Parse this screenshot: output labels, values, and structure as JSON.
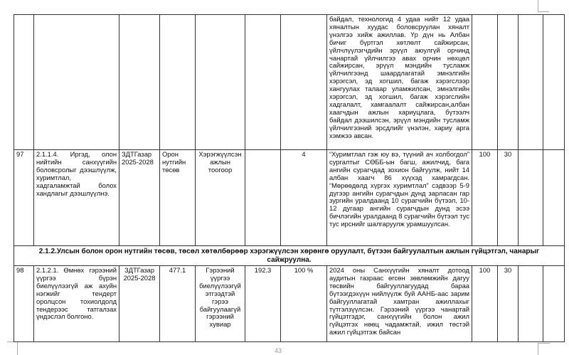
{
  "rows": [
    {
      "no": "",
      "task": "",
      "org": "",
      "budget": "",
      "indicator": "",
      "baseline": "",
      "target": "",
      "report": "байдал, технологид 4 удаа нийт 12 удаа хяналтын хуудас боловсруулан хяналт үнэлгээ хийж ажиллав. Үр дүн нь Албан бичиг бүртгэл хөтлөлт сайжирсан, үйлчлүүлэгчдийн эрүүл аюулгүй орчинд чанартай үйлчилгээ авах орчин нөхцөл сайжирсан, эрүүл мэндийн тусламж үйлчилгээнд шаардлагатай эмнэлгийн хэрэгсэл, эд хогшил, багаж хэрэгслээр хангуулах талаар уламжилсан, эмнэлгийн хэрэгсэл, эд хогшил, багаж хэрэгслийн хадгалалт, хамгаалалт сайжирсан,албан хаагчдын ажлын хариуцлага, бүтээлч байдал дээшилсэн, эрүүл мэндийн тусламж үйлчилгээний эрсдлийг үнэлэн, хариу арга хэмжээ авсан.",
      "score1": "",
      "score2": ""
    },
    {
      "no": "97",
      "task": "2.1.1.4. Иргэд, олон нийтийн санхүүгийн боловсролыг дээшлүүлж, хуримтлал, хадгаламжтай болох хандлагыг дээшлүүлнэ.",
      "org": "ЗДТГазар 2025-2028",
      "budget": "Орон нутгийн төсөв",
      "indicator": "Хэрэгжүүлсэн ажлын тоогоор",
      "baseline": "",
      "target": "4",
      "report": "“Хуримтлал гэж юу вэ, түүний ач холбогдол” сургалтыг СӨББ-ын багш, ажилчид, бага ангийн сурагчдад зохион байгуулж, нийт 14 албан хаагч 86 хүүхэд хамрагдсан. “Мөрөөдөлд хүргэх хуримтлал” сэдвээр 5-9 дүгээр ангийн сурагчдын дунд зарласан гар зургийн уралдаанд 10 сурагчийн бүтээл, 10-12 дугаар ангийн сурагчдын дунд эсээ бичлэгийн уралдаанд 8 сурагчийн бүтээл тус тус ирснийг шалгаруулж урамшуулсан.",
      "score1": "100",
      "score2": "30"
    },
    {
      "no": "98",
      "task": "2.1.2.1. Өмнөх гэрээний үүргээ бүрэн биелүүлээгүй аж ахуйн нэгжийг тендерт оролцсон тохиолдолд тендерээс татгалзах үндэслэл болгоно.",
      "org": "ЗДТГазар 2025-2028",
      "budget": "477.1",
      "indicator": "Гэрээний үүргээ биелүүлээгүй этгээдтэй гэрээ байгуулаагүй гэрээний хувиар",
      "baseline": "192.3",
      "target": "100 %",
      "report": "2024 оны Санхүүгийн хяналт дотоод аудитын газраас өгсөн зөвлөмжийн дагуу төсвийн байгууллагуудад бараа бүтээгдэхүүн нийлүүлж буй ААНБ-аас зарим байгууллагатай хамтран ажиллахыг түтгэлзүүлсэн. Гэрээний үүргээ чанартай гүйцэтгэдэг, санхүүгийн болон ажил гүйцэтгэх нөөц чадамжтай, ижил төстэй ажил гүйцэтгэж байсан",
      "score1": "100",
      "score2": "30"
    }
  ],
  "section_heading": "2.1.2.Улсын болон орон нутгийн төсөв, төсөл хөтөлбөрөөр хэрэгжүүлсэн хөрөнгө оруулалт, бүтээн байгуулалтын ажлын гүйцэтгэл, чанарыг сайжруулна.",
  "page_number": "43"
}
